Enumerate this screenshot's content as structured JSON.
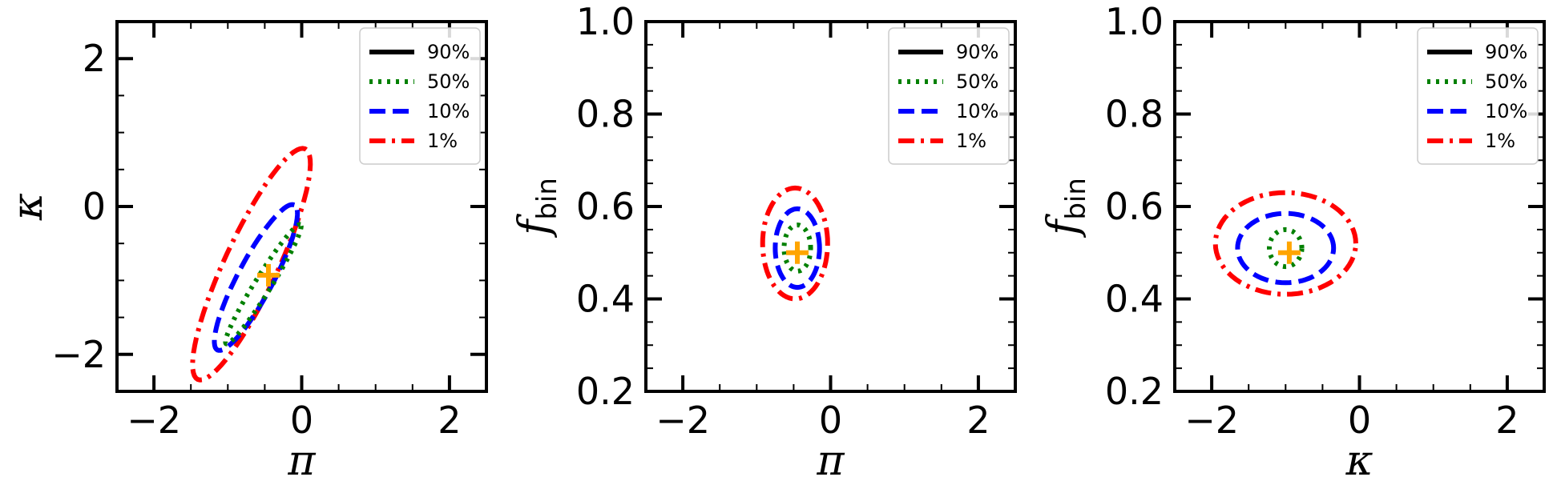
{
  "legend_entries": [
    {
      "label": "90%",
      "color": "#000000",
      "dash": "solid"
    },
    {
      "label": "50%",
      "color": "#008000",
      "dash": "dotted"
    },
    {
      "label": "10%",
      "color": "#0000ff",
      "dash": "dashed"
    },
    {
      "label": "1%",
      "color": "#ff0000",
      "dash": "dashdot"
    }
  ],
  "marker_color": "#ffa500",
  "chart_data": [
    {
      "type": "contour",
      "xlabel": "π",
      "ylabel": "κ",
      "ylabel_sub": "",
      "xlim": [
        -2.5,
        2.5
      ],
      "ylim": [
        -2.5,
        2.5
      ],
      "xticks": [
        -2,
        0,
        2
      ],
      "xtick_labels": [
        "−2",
        "0",
        "2"
      ],
      "yticks": [
        -2,
        0,
        2
      ],
      "ytick_labels": [
        "−2",
        "0",
        "2"
      ],
      "xminor": 0.5,
      "yminor": 0.5,
      "legend": "top-right",
      "marker": {
        "x": -0.45,
        "y": -0.93
      },
      "contours": [
        {
          "level": "50%",
          "center": [
            -0.52,
            -1.05
          ],
          "rx": 0.95,
          "ry": 0.11,
          "angle_deg": 58
        },
        {
          "level": "10%",
          "center": [
            -0.62,
            -0.96
          ],
          "rx": 1.11,
          "ry": 0.24,
          "angle_deg": 62
        },
        {
          "level": "1%",
          "center": [
            -0.68,
            -0.78
          ],
          "rx": 1.72,
          "ry": 0.36,
          "angle_deg": 65
        }
      ]
    },
    {
      "type": "contour",
      "xlabel": "π",
      "ylabel": "f",
      "ylabel_sub": "bin",
      "xlim": [
        -2.5,
        2.5
      ],
      "ylim": [
        0.2,
        1.0
      ],
      "xticks": [
        -2,
        0,
        2
      ],
      "xtick_labels": [
        "−2",
        "0",
        "2"
      ],
      "yticks": [
        0.2,
        0.4,
        0.6,
        0.8,
        1.0
      ],
      "ytick_labels": [
        "0.2",
        "0.4",
        "0.6",
        "0.8",
        "1.0"
      ],
      "xminor": 0.5,
      "yminor": 0.05,
      "legend": "top-right",
      "marker": {
        "x": -0.45,
        "y": 0.5
      },
      "contours": [
        {
          "level": "50%",
          "center": [
            -0.45,
            0.51
          ],
          "rx": 0.18,
          "ry": 0.05,
          "angle_deg": 0
        },
        {
          "level": "10%",
          "center": [
            -0.45,
            0.51
          ],
          "rx": 0.3,
          "ry": 0.085,
          "angle_deg": 0
        },
        {
          "level": "1%",
          "center": [
            -0.48,
            0.52
          ],
          "rx": 0.44,
          "ry": 0.12,
          "angle_deg": 0
        }
      ]
    },
    {
      "type": "contour",
      "xlabel": "κ",
      "ylabel": "f",
      "ylabel_sub": "bin",
      "xlim": [
        -2.5,
        2.5
      ],
      "ylim": [
        0.2,
        1.0
      ],
      "xticks": [
        -2,
        0,
        2
      ],
      "xtick_labels": [
        "−2",
        "0",
        "2"
      ],
      "yticks": [
        0.2,
        0.4,
        0.6,
        0.8,
        1.0
      ],
      "ytick_labels": [
        "0.2",
        "0.4",
        "0.6",
        "0.8",
        "1.0"
      ],
      "xminor": 0.5,
      "yminor": 0.05,
      "legend": "top-right",
      "marker": {
        "x": -0.95,
        "y": 0.5
      },
      "contours": [
        {
          "level": "50%",
          "center": [
            -1.0,
            0.51
          ],
          "rx": 0.22,
          "ry": 0.04,
          "angle_deg": 0
        },
        {
          "level": "10%",
          "center": [
            -1.0,
            0.51
          ],
          "rx": 0.65,
          "ry": 0.075,
          "angle_deg": 0
        },
        {
          "level": "1%",
          "center": [
            -1.0,
            0.52
          ],
          "rx": 0.95,
          "ry": 0.11,
          "angle_deg": 0
        }
      ]
    }
  ]
}
